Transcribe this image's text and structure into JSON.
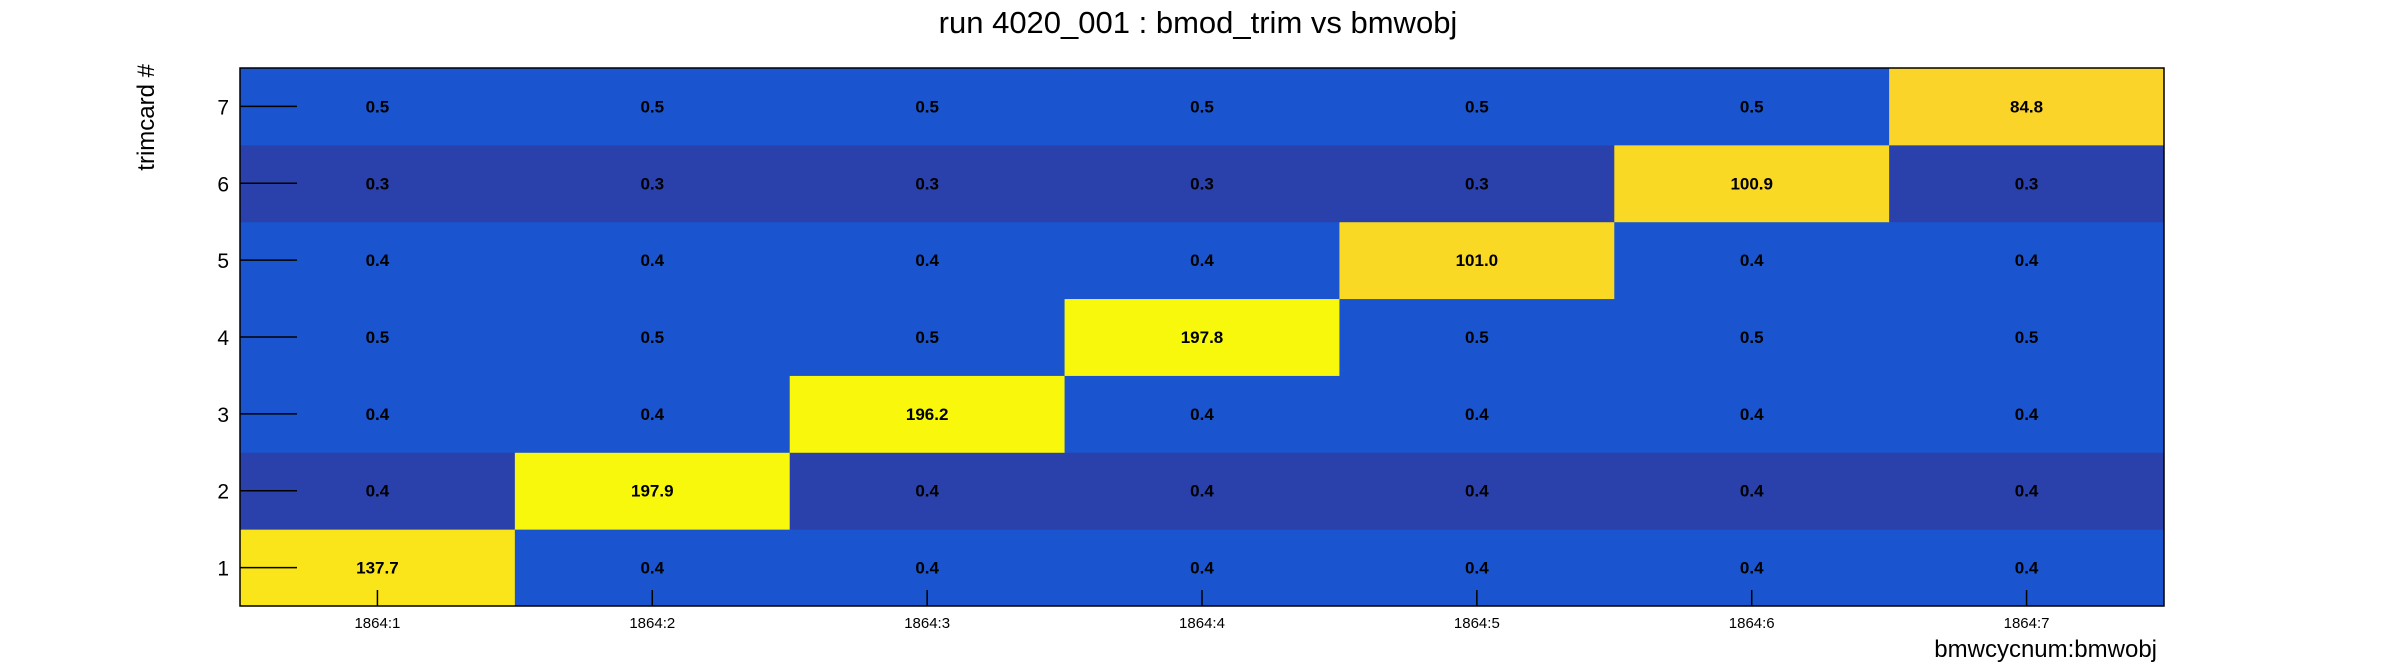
{
  "chart_data": {
    "type": "heatmap",
    "title": "run 4020_001 : bmod_trim vs bmwobj",
    "xlabel": "bmwcycnum:bmwobj",
    "ylabel": "trimcard #",
    "x_categories": [
      "1864:1",
      "1864:2",
      "1864:3",
      "1864:4",
      "1864:5",
      "1864:6",
      "1864:7"
    ],
    "y_categories": [
      "1",
      "2",
      "3",
      "4",
      "5",
      "6",
      "7"
    ],
    "values": [
      [
        137.7,
        0.4,
        0.4,
        0.4,
        0.4,
        0.4,
        0.4
      ],
      [
        0.4,
        197.9,
        0.4,
        0.4,
        0.4,
        0.4,
        0.4
      ],
      [
        0.4,
        0.4,
        196.2,
        0.4,
        0.4,
        0.4,
        0.4
      ],
      [
        0.5,
        0.5,
        0.5,
        197.8,
        0.5,
        0.5,
        0.5
      ],
      [
        0.4,
        0.4,
        0.4,
        0.4,
        101.0,
        0.4,
        0.4
      ],
      [
        0.3,
        0.3,
        0.3,
        0.3,
        0.3,
        100.9,
        0.3
      ],
      [
        0.5,
        0.5,
        0.5,
        0.5,
        0.5,
        0.5,
        84.8
      ]
    ],
    "value_labels": [
      [
        "137.7",
        "0.4",
        "0.4",
        "0.4",
        "0.4",
        "0.4",
        "0.4"
      ],
      [
        "0.4",
        "197.9",
        "0.4",
        "0.4",
        "0.4",
        "0.4",
        "0.4"
      ],
      [
        "0.4",
        "0.4",
        "196.2",
        "0.4",
        "0.4",
        "0.4",
        "0.4"
      ],
      [
        "0.5",
        "0.5",
        "0.5",
        "197.8",
        "0.5",
        "0.5",
        "0.5"
      ],
      [
        "0.4",
        "0.4",
        "0.4",
        "0.4",
        "101.0",
        "0.4",
        "0.4"
      ],
      [
        "0.3",
        "0.3",
        "0.3",
        "0.3",
        "0.3",
        "100.9",
        "0.3"
      ],
      [
        "0.5",
        "0.5",
        "0.5",
        "0.5",
        "0.5",
        "0.5",
        "84.8"
      ]
    ],
    "colors": {
      "off_diag_row_light": "#1a55cf",
      "off_diag_row_dark": "#2a40aa",
      "diag_low": "#fbd22a",
      "diag_high": "#f8f80c"
    },
    "dark_rows": [
      "2",
      "6"
    ],
    "grid": false,
    "legend": "none"
  }
}
